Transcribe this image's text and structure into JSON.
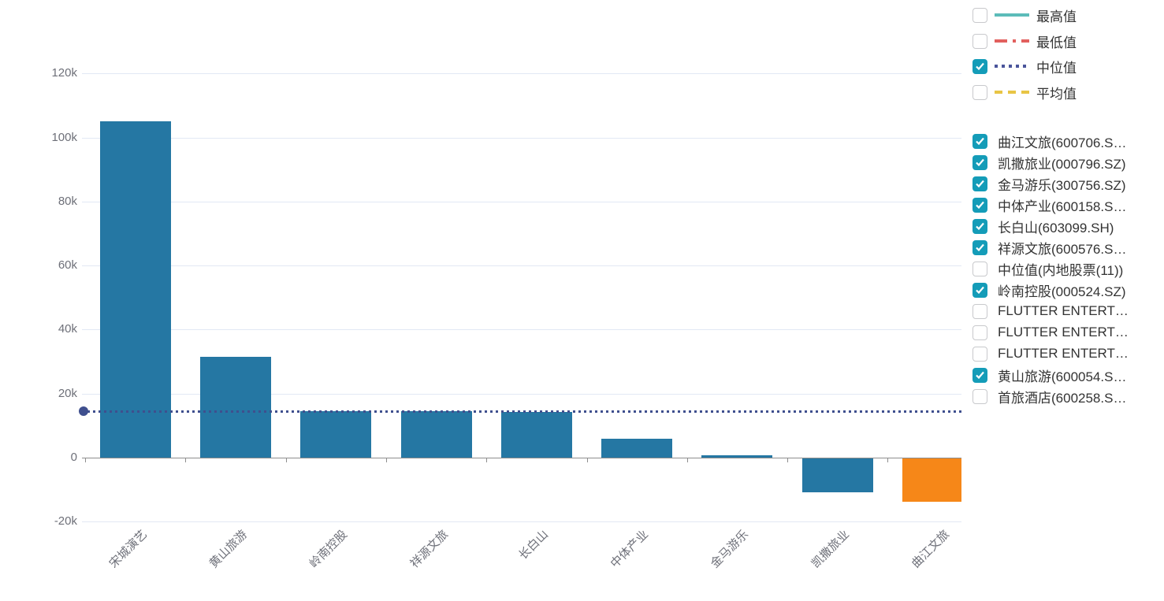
{
  "colors": {
    "bar": "#2577a3",
    "bar_highlight": "#f68718",
    "median_line": "#3f4f8e",
    "stat_max": "#5cbcb9",
    "stat_min": "#e2605e",
    "stat_median": "#4a559b",
    "stat_mean": "#e8c545",
    "checkbox_checked_bg": "#149cb8",
    "axis_line": "#8d8d8d",
    "grid_line": "#e2e8f4",
    "axis_text": "#6e7079",
    "legend_text": "#333333"
  },
  "stat_legend": {
    "items": [
      {
        "key": "max",
        "label": "最高值",
        "checked": false,
        "color_key": "stat_max",
        "dash": "solid"
      },
      {
        "key": "min",
        "label": "最低值",
        "checked": false,
        "color_key": "stat_min",
        "dash": "dashdot"
      },
      {
        "key": "median",
        "label": "中位值",
        "checked": true,
        "color_key": "stat_median",
        "dash": "dotted"
      },
      {
        "key": "mean",
        "label": "平均值",
        "checked": false,
        "color_key": "stat_mean",
        "dash": "dashed"
      }
    ]
  },
  "series_legend": {
    "items": [
      {
        "label": "曲江文旅(600706.S…",
        "checked": true
      },
      {
        "label": "凯撒旅业(000796.SZ)",
        "checked": true
      },
      {
        "label": "金马游乐(300756.SZ)",
        "checked": true
      },
      {
        "label": "中体产业(600158.S…",
        "checked": true
      },
      {
        "label": "长白山(603099.SH)",
        "checked": true
      },
      {
        "label": "祥源文旅(600576.S…",
        "checked": true
      },
      {
        "label": "中位值(内地股票(11))",
        "checked": false
      },
      {
        "label": "岭南控股(000524.SZ)",
        "checked": true
      },
      {
        "label": "FLUTTER ENTERT…",
        "checked": false
      },
      {
        "label": "FLUTTER ENTERT…",
        "checked": false
      },
      {
        "label": "FLUTTER ENTERT…",
        "checked": false
      },
      {
        "label": "黄山旅游(600054.S…",
        "checked": true
      },
      {
        "label": "首旅酒店(600258.S…",
        "checked": false
      }
    ]
  },
  "chart_data": {
    "type": "bar",
    "title": "",
    "xlabel": "",
    "ylabel": "",
    "categories": [
      "宋城演艺",
      "黄山旅游",
      "岭南控股",
      "祥源文旅",
      "长白山",
      "中体产业",
      "金马游乐",
      "凯撒旅业",
      "曲江文旅"
    ],
    "values": [
      105000,
      31500,
      14500,
      14400,
      14300,
      6000,
      700,
      -10600,
      -13600
    ],
    "highlighted_category": "曲江文旅",
    "median_value": 14400,
    "median_label": "中位值",
    "y_ticks": [
      {
        "label": "120k",
        "value": 120000
      },
      {
        "label": "100k",
        "value": 100000
      },
      {
        "label": "80k",
        "value": 80000
      },
      {
        "label": "60k",
        "value": 60000
      },
      {
        "label": "40k",
        "value": 40000
      },
      {
        "label": "20k",
        "value": 20000
      },
      {
        "label": "0",
        "value": 0
      },
      {
        "label": "-20k",
        "value": -20000
      }
    ],
    "ylim": [
      -20000,
      120000
    ],
    "grid": true,
    "legend_position": "right",
    "x_label_rotation": 45
  }
}
